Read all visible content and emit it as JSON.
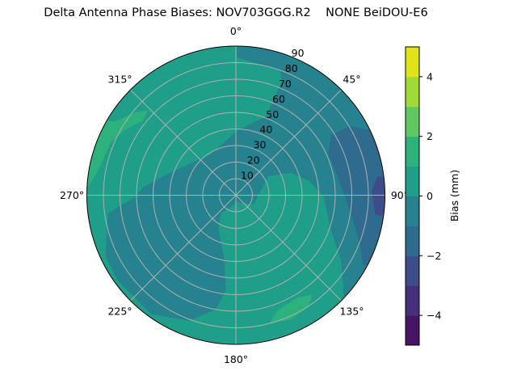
{
  "chart_data": {
    "type": "contour",
    "projection": "polar",
    "title": "Delta Antenna Phase Biases: NOV703GGG.R2    NONE BeiDOU-E6",
    "theta_direction": "clockwise",
    "theta_zero": "top",
    "theta_ticks": [
      "0°",
      "45°",
      "90°",
      "135°",
      "180°",
      "225°",
      "270°",
      "315°"
    ],
    "theta_tick_values": [
      0,
      45,
      90,
      135,
      180,
      225,
      270,
      315
    ],
    "r_range": [
      0,
      90
    ],
    "r_ticks": [
      "10",
      "20",
      "30",
      "40",
      "50",
      "60",
      "70",
      "80",
      "90"
    ],
    "r_tick_values": [
      10,
      20,
      30,
      40,
      50,
      60,
      70,
      80,
      90
    ],
    "grid": true,
    "colormap": "viridis",
    "levels": [
      -5,
      -4,
      -3,
      -2,
      -1,
      0,
      1,
      2,
      3,
      4,
      5
    ],
    "level_colors": [
      "#471466",
      "#472f7d",
      "#3e4c8a",
      "#2e6b8e",
      "#26828e",
      "#1f9e89",
      "#2db27d",
      "#5ec962",
      "#a0da39",
      "#dfe318"
    ],
    "background_level": [
      0,
      1
    ],
    "regions": [
      {
        "level": [
          -1,
          0
        ],
        "points": [
          [
            0,
            90
          ],
          [
            0.5,
            83
          ],
          [
            19.5,
            80
          ],
          [
            22,
            74
          ],
          [
            21,
            51
          ],
          [
            1,
            39
          ],
          [
            328,
            29
          ],
          [
            289,
            42
          ],
          [
            275,
            56
          ],
          [
            269,
            61
          ],
          [
            262,
            78
          ],
          [
            245,
            87
          ],
          [
            234,
            88
          ],
          [
            215.5,
            88
          ],
          [
            200.6,
            81
          ],
          [
            190,
            70
          ],
          [
            186,
            57
          ],
          [
            191,
            38
          ],
          [
            207,
            23
          ],
          [
            220,
            14
          ],
          [
            172,
            4.4
          ],
          [
            117,
            12
          ],
          [
            59.5,
            23
          ],
          [
            68,
            36
          ],
          [
            79,
            45
          ],
          [
            91,
            53
          ],
          [
            110,
            61
          ],
          [
            122,
            75
          ],
          [
            131,
            86
          ],
          [
            135,
            90
          ],
          [
            0,
            90
          ]
        ]
      },
      {
        "level": [
          -2,
          -1
        ],
        "points": [
          [
            65,
            90
          ],
          [
            58.7,
            80
          ],
          [
            57.8,
            68
          ],
          [
            66,
            61
          ],
          [
            82,
            63
          ],
          [
            100,
            71
          ],
          [
            112,
            81
          ],
          [
            118.5,
            87
          ],
          [
            118,
            90
          ],
          [
            65,
            90
          ]
        ]
      },
      {
        "level": [
          -3,
          -2
        ],
        "points": [
          [
            83,
            90
          ],
          [
            82.6,
            86
          ],
          [
            88.5,
            82
          ],
          [
            98,
            85
          ],
          [
            98,
            90
          ],
          [
            83,
            90
          ]
        ]
      },
      {
        "level": [
          1,
          2
        ],
        "points": [
          [
            314,
            74
          ],
          [
            309,
            79
          ],
          [
            301,
            86
          ],
          [
            300,
            90
          ],
          [
            274,
            90
          ],
          [
            273.5,
            89
          ],
          [
            281.5,
            84
          ],
          [
            292.5,
            82
          ],
          [
            300,
            78
          ],
          [
            309,
            72
          ]
        ]
      },
      {
        "level": [
          1,
          2
        ],
        "points": [
          [
            165.4,
            80
          ],
          [
            160,
            74
          ],
          [
            149.6,
            72
          ],
          [
            142.4,
            75.6
          ],
          [
            147,
            80.5
          ],
          [
            156,
            82
          ]
        ]
      }
    ],
    "colorbar": {
      "label": "Bias (mm)",
      "range": [
        -5,
        5
      ],
      "ticks": [
        "−4",
        "−2",
        "0",
        "2",
        "4"
      ],
      "tick_values": [
        -4,
        -2,
        0,
        2,
        4
      ]
    }
  }
}
